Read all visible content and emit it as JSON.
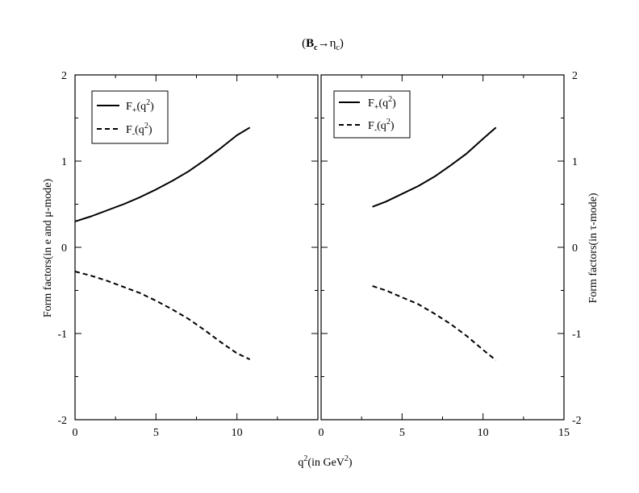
{
  "chart_data": {
    "type": "line",
    "title": {
      "pre": "(",
      "b": "B",
      "b_sub": "c",
      "arrow": "→η",
      "eta_sub": "c",
      "post": ")"
    },
    "xlabel": {
      "pre": "q",
      "sup": "2",
      "mid": "(in GeV",
      "sup2": "2",
      "post": ")"
    },
    "panels": [
      {
        "name": "left",
        "ylabel": "Form factors(in e and  μ-mode)",
        "xlim": [
          0,
          15
        ],
        "ylim": [
          -2,
          2
        ],
        "xticks": [
          "0",
          "5",
          "10"
        ],
        "yticks": [
          "-2",
          "-1",
          "0",
          "1",
          "2"
        ],
        "legend": [
          {
            "main": "F",
            "sub": "+",
            "rest": "(q",
            "sup": "2",
            "end": ")",
            "style": "solid"
          },
          {
            "main": "F",
            "sub": "-",
            "rest": "(q",
            "sup": "2",
            "end": ")",
            "style": "dashed"
          }
        ],
        "series": [
          {
            "style": "solid",
            "x": [
              0,
              1,
              2,
              3,
              4,
              5,
              6,
              7,
              8,
              9,
              10,
              10.8
            ],
            "y": [
              0.3,
              0.36,
              0.43,
              0.5,
              0.58,
              0.67,
              0.77,
              0.88,
              1.01,
              1.15,
              1.3,
              1.39
            ]
          },
          {
            "style": "dashed",
            "x": [
              0,
              1,
              2,
              3,
              4,
              5,
              6,
              7,
              8,
              9,
              10,
              10.8
            ],
            "y": [
              -0.28,
              -0.33,
              -0.39,
              -0.46,
              -0.53,
              -0.62,
              -0.72,
              -0.83,
              -0.96,
              -1.1,
              -1.23,
              -1.3
            ]
          }
        ]
      },
      {
        "name": "right",
        "ylabel": "Form factors(in τ-mode)",
        "xlim": [
          0,
          15
        ],
        "ylim": [
          -2,
          2
        ],
        "xticks": [
          "0",
          "5",
          "10",
          "15"
        ],
        "yticks": [
          "-2",
          "-1",
          "0",
          "1",
          "2"
        ],
        "legend": [
          {
            "main": "F",
            "sub": "+",
            "rest": "(q",
            "sup": "2",
            "end": ")",
            "style": "solid"
          },
          {
            "main": "F",
            "sub": "-",
            "rest": "(q",
            "sup": "2",
            "end": ")",
            "style": "dashed"
          }
        ],
        "series": [
          {
            "style": "solid",
            "x": [
              3.17,
              4,
              5,
              6,
              7,
              8,
              9,
              10,
              10.8
            ],
            "y": [
              0.47,
              0.53,
              0.62,
              0.71,
              0.82,
              0.95,
              1.09,
              1.26,
              1.39
            ]
          },
          {
            "style": "dashed",
            "x": [
              3.17,
              4,
              5,
              6,
              7,
              8,
              9,
              10,
              10.8
            ],
            "y": [
              -0.45,
              -0.5,
              -0.58,
              -0.66,
              -0.77,
              -0.89,
              -1.03,
              -1.19,
              -1.31
            ]
          }
        ]
      }
    ]
  }
}
